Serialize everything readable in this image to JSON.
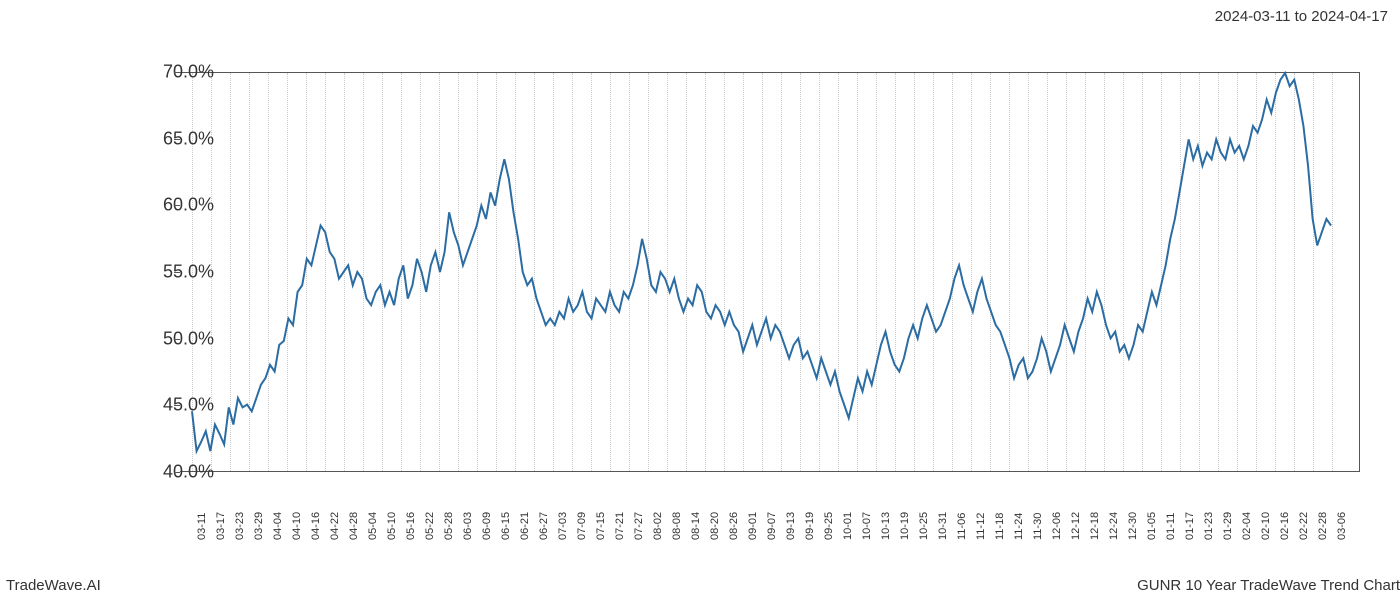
{
  "header": {
    "date_range": "2024-03-11 to 2024-04-17"
  },
  "footer": {
    "left": "TradeWave.AI",
    "right": "GUNR 10 Year TradeWave Trend Chart"
  },
  "chart": {
    "type": "line",
    "background_color": "#ffffff",
    "grid_color": "#cccccc",
    "axis_color": "#555555",
    "line_color": "#2b6ca3",
    "line_width": 2,
    "highlight_band": {
      "start_x": "03-11",
      "end_x": "04-17",
      "fill": "#d8e8d0",
      "opacity": 0.55
    },
    "ylim": [
      40,
      70
    ],
    "ytick_step": 5,
    "yticklabels": [
      "40.0%",
      "45.0%",
      "50.0%",
      "55.0%",
      "60.0%",
      "65.0%",
      "70.0%"
    ],
    "yticks": [
      40,
      45,
      50,
      55,
      60,
      65,
      70
    ],
    "ylabel_fontsize": 18,
    "xlabel_fontsize": 11,
    "x_labels": [
      "03-11",
      "03-17",
      "03-23",
      "03-29",
      "04-04",
      "04-10",
      "04-16",
      "04-22",
      "04-28",
      "05-04",
      "05-10",
      "05-16",
      "05-22",
      "05-28",
      "06-03",
      "06-09",
      "06-15",
      "06-21",
      "06-27",
      "07-03",
      "07-09",
      "07-15",
      "07-21",
      "07-27",
      "08-02",
      "08-08",
      "08-14",
      "08-20",
      "08-26",
      "09-01",
      "09-07",
      "09-13",
      "09-19",
      "09-25",
      "10-01",
      "10-07",
      "10-13",
      "10-19",
      "10-25",
      "10-31",
      "11-06",
      "11-12",
      "11-18",
      "11-24",
      "11-30",
      "12-06",
      "12-12",
      "12-18",
      "12-24",
      "12-30",
      "01-05",
      "01-11",
      "01-17",
      "01-23",
      "01-29",
      "02-04",
      "02-10",
      "02-16",
      "02-22",
      "02-28",
      "03-06"
    ],
    "values": [
      44.5,
      41.5,
      42.2,
      43.0,
      41.5,
      43.5,
      42.8,
      42.0,
      44.8,
      43.5,
      45.5,
      44.8,
      45.0,
      44.5,
      45.5,
      46.5,
      47.0,
      48.0,
      47.5,
      49.5,
      49.8,
      51.5,
      51.0,
      53.5,
      54.0,
      56.0,
      55.5,
      57.0,
      58.5,
      58.0,
      56.5,
      56.0,
      54.5,
      55.0,
      55.5,
      54.0,
      55.0,
      54.5,
      53.0,
      52.5,
      53.5,
      54.0,
      52.5,
      53.5,
      52.5,
      54.5,
      55.5,
      53.0,
      54.0,
      56.0,
      55.0,
      53.5,
      55.5,
      56.5,
      55.0,
      56.5,
      59.5,
      58.0,
      57.0,
      55.5,
      56.5,
      57.5,
      58.5,
      60.0,
      59.0,
      61.0,
      60.0,
      62.0,
      63.5,
      62.0,
      59.5,
      57.5,
      55.0,
      54.0,
      54.5,
      53.0,
      52.0,
      51.0,
      51.5,
      51.0,
      52.0,
      51.5,
      53.0,
      52.0,
      52.5,
      53.5,
      52.0,
      51.5,
      53.0,
      52.5,
      52.0,
      53.5,
      52.5,
      52.0,
      53.5,
      53.0,
      54.0,
      55.5,
      57.5,
      56.0,
      54.0,
      53.5,
      55.0,
      54.5,
      53.5,
      54.5,
      53.0,
      52.0,
      53.0,
      52.5,
      54.0,
      53.5,
      52.0,
      51.5,
      52.5,
      52.0,
      51.0,
      52.0,
      51.0,
      50.5,
      49.0,
      50.0,
      51.0,
      49.5,
      50.5,
      51.5,
      50.0,
      51.0,
      50.5,
      49.5,
      48.5,
      49.5,
      50.0,
      48.5,
      49.0,
      48.0,
      47.0,
      48.5,
      47.5,
      46.5,
      47.5,
      46.0,
      45.0,
      44.0,
      45.5,
      47.0,
      46.0,
      47.5,
      46.5,
      48.0,
      49.5,
      50.5,
      49.0,
      48.0,
      47.5,
      48.5,
      50.0,
      51.0,
      50.0,
      51.5,
      52.5,
      51.5,
      50.5,
      51.0,
      52.0,
      53.0,
      54.5,
      55.5,
      54.0,
      53.0,
      52.0,
      53.5,
      54.5,
      53.0,
      52.0,
      51.0,
      50.5,
      49.5,
      48.5,
      47.0,
      48.0,
      48.5,
      47.0,
      47.5,
      48.5,
      50.0,
      49.0,
      47.5,
      48.5,
      49.5,
      51.0,
      50.0,
      49.0,
      50.5,
      51.5,
      53.0,
      52.0,
      53.5,
      52.5,
      51.0,
      50.0,
      50.5,
      49.0,
      49.5,
      48.5,
      49.5,
      51.0,
      50.5,
      52.0,
      53.5,
      52.5,
      54.0,
      55.5,
      57.5,
      59.0,
      61.0,
      63.0,
      65.0,
      63.5,
      64.5,
      63.0,
      64.0,
      63.5,
      65.0,
      64.0,
      63.5,
      65.0,
      64.0,
      64.5,
      63.5,
      64.5,
      66.0,
      65.5,
      66.5,
      68.0,
      67.0,
      68.5,
      69.5,
      70.0,
      69.0,
      69.5,
      68.0,
      66.0,
      63.0,
      59.0,
      57.0,
      58.0,
      59.0,
      58.5
    ]
  }
}
